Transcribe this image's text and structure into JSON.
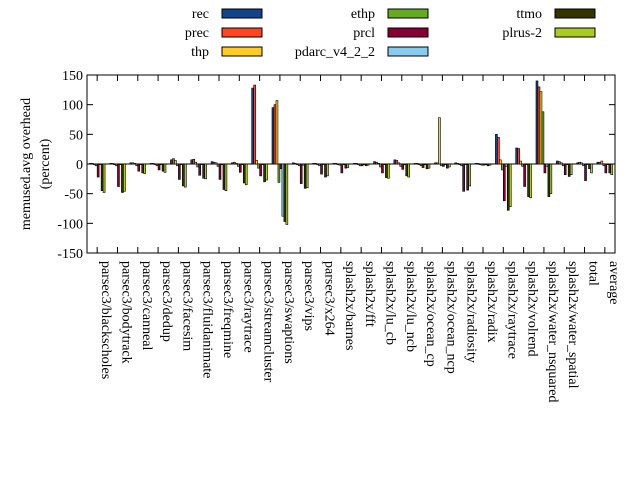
{
  "chart_data": {
    "type": "bar",
    "ylabel": "memused.avg overhead",
    "ylabel_unit": "(percent)",
    "ylim": [
      -150,
      150
    ],
    "yticks": [
      "150",
      "100",
      "50",
      "0",
      "-50",
      "-100",
      "-150"
    ],
    "legend_position": "top",
    "categories": [
      "parsec3/blackscholes",
      "parsec3/bodytrack",
      "parsec3/canneal",
      "parsec3/dedup",
      "parsec3/facesim",
      "parsec3/fluidanimate",
      "parsec3/freqmine",
      "parsec3/raytrace",
      "parsec3/streamcluster",
      "parsec3/swaptions",
      "parsec3/vips",
      "parsec3/x264",
      "splash2x/barnes",
      "splash2x/fft",
      "splash2x/lu_cb",
      "splash2x/lu_ncb",
      "splash2x/ocean_cp",
      "splash2x/ocean_ncp",
      "splash2x/radiosity",
      "splash2x/radix",
      "splash2x/raytrace",
      "splash2x/volrend",
      "splash2x/water_nsquared",
      "splash2x/water_spatial",
      "total",
      "average"
    ],
    "series": [
      {
        "name": "rec",
        "color": "#114488",
        "values": [
          1,
          1,
          2,
          1,
          7,
          7,
          4,
          2,
          128,
          95,
          2,
          1,
          1,
          1,
          4,
          7,
          1,
          2,
          2,
          1,
          50,
          27,
          140,
          5,
          2,
          3
        ]
      },
      {
        "name": "prec",
        "color": "#ff4422",
        "values": [
          1,
          1,
          2,
          1,
          9,
          8,
          3,
          3,
          133,
          100,
          1,
          1,
          1,
          1,
          3,
          6,
          1,
          2,
          1,
          1,
          45,
          26,
          130,
          4,
          3,
          3
        ]
      },
      {
        "name": "thp",
        "color": "#ffcc22",
        "values": [
          0,
          0,
          1,
          0,
          6,
          3,
          2,
          1,
          6,
          107,
          0,
          0,
          0,
          0,
          1,
          2,
          0,
          78,
          0,
          0,
          7,
          5,
          122,
          2,
          2,
          5
        ]
      },
      {
        "name": "ethp",
        "color": "#66aa22",
        "values": [
          -3,
          -3,
          -3,
          -3,
          -3,
          -5,
          -4,
          -4,
          -7,
          -31,
          -3,
          -3,
          -2,
          -3,
          -5,
          -4,
          -3,
          -3,
          -3,
          -2,
          -10,
          -4,
          88,
          -3,
          -3,
          -3
        ]
      },
      {
        "name": "prcl",
        "color": "#880033",
        "values": [
          -22,
          -38,
          -12,
          -10,
          -26,
          -19,
          -26,
          -14,
          -20,
          -8,
          -33,
          -17,
          -15,
          -3,
          -15,
          -9,
          -6,
          -4,
          -46,
          -2,
          -62,
          -38,
          -15,
          -18,
          -28,
          -15
        ]
      },
      {
        "name": "pdarc_v4_2_2",
        "color": "#88ccee",
        "values": [
          -1,
          -1,
          -1,
          -1,
          -1,
          -1,
          -1,
          -1,
          -1,
          -88,
          -2,
          -1,
          -1,
          -1,
          -1,
          -1,
          -1,
          -1,
          -1,
          -1,
          -4,
          -1,
          -4,
          -1,
          -1,
          -1
        ]
      },
      {
        "name": "ttmo",
        "color": "#333300",
        "values": [
          -45,
          -48,
          -15,
          -12,
          -37,
          -24,
          -43,
          -32,
          -30,
          -97,
          -41,
          -22,
          -7,
          -3,
          -23,
          -20,
          -8,
          -7,
          -44,
          -3,
          -78,
          -55,
          -55,
          -21,
          -8,
          -15
        ]
      },
      {
        "name": "plrus-2",
        "color": "#aacc22",
        "values": [
          -48,
          -46,
          -16,
          -14,
          -39,
          -25,
          -45,
          -35,
          -27,
          -102,
          -40,
          -20,
          -6,
          -2,
          -24,
          -22,
          -7,
          -5,
          -37,
          -2,
          -72,
          -57,
          -50,
          -18,
          -15,
          -18
        ]
      }
    ]
  }
}
